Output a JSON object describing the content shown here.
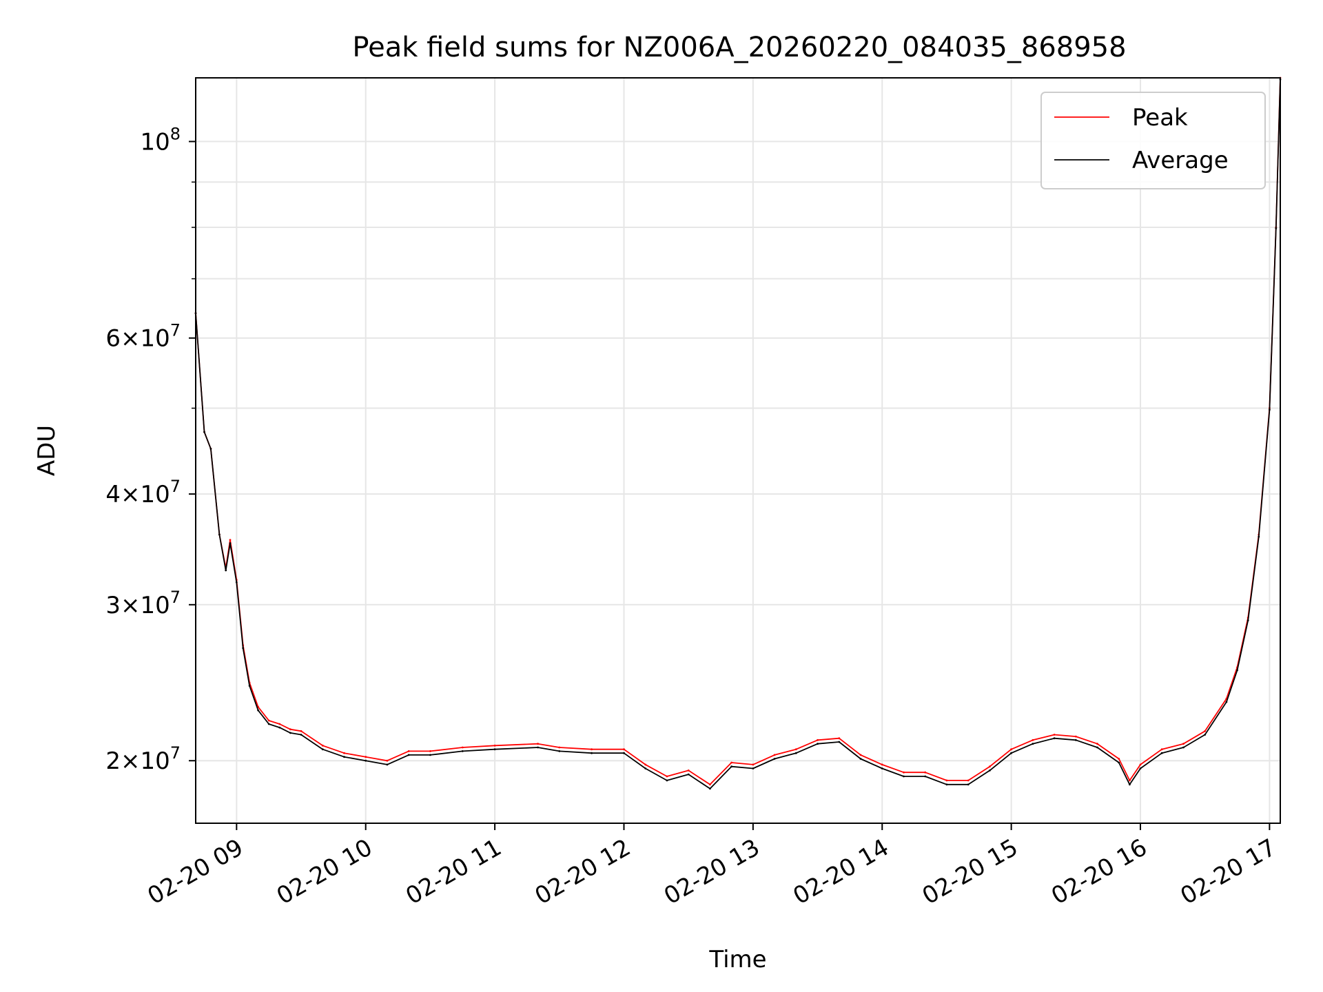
{
  "chart_data": {
    "type": "line",
    "title": "Peak field sums for NZ006A_20260220_084035_868958",
    "xlabel": "Time",
    "ylabel": "ADU",
    "y_scale": "log",
    "xlim": [
      "02-20 08:41",
      "02-20 17:05"
    ],
    "ylim": [
      17000000,
      118000000
    ],
    "grid": true,
    "legend_position": "top-right",
    "x_tick_labels": [
      "02-20 09",
      "02-20 10",
      "02-20 11",
      "02-20 12",
      "02-20 13",
      "02-20 14",
      "02-20 15",
      "02-20 16",
      "02-20 17"
    ],
    "y_tick_labels": [
      {
        "value": 20000000,
        "mantissa": "2",
        "exp": "7"
      },
      {
        "value": 30000000,
        "mantissa": "3",
        "exp": "7"
      },
      {
        "value": 40000000,
        "mantissa": "4",
        "exp": "7"
      },
      {
        "value": 60000000,
        "mantissa": "6",
        "exp": "7"
      },
      {
        "value": 100000000,
        "mantissa": "",
        "exp": "8"
      }
    ],
    "x": [
      "02-20 08:41",
      "02-20 08:45",
      "02-20 08:48",
      "02-20 08:52",
      "02-20 08:55",
      "02-20 08:57",
      "02-20 09:00",
      "02-20 09:03",
      "02-20 09:06",
      "02-20 09:10",
      "02-20 09:15",
      "02-20 09:20",
      "02-20 09:25",
      "02-20 09:30",
      "02-20 09:40",
      "02-20 09:50",
      "02-20 10:00",
      "02-20 10:10",
      "02-20 10:20",
      "02-20 10:30",
      "02-20 10:45",
      "02-20 11:00",
      "02-20 11:20",
      "02-20 11:30",
      "02-20 11:45",
      "02-20 12:00",
      "02-20 12:10",
      "02-20 12:20",
      "02-20 12:30",
      "02-20 12:40",
      "02-20 12:50",
      "02-20 13:00",
      "02-20 13:10",
      "02-20 13:20",
      "02-20 13:30",
      "02-20 13:40",
      "02-20 13:50",
      "02-20 14:00",
      "02-20 14:10",
      "02-20 14:20",
      "02-20 14:30",
      "02-20 14:40",
      "02-20 14:50",
      "02-20 15:00",
      "02-20 15:10",
      "02-20 15:20",
      "02-20 15:30",
      "02-20 15:40",
      "02-20 15:50",
      "02-20 15:55",
      "02-20 16:00",
      "02-20 16:10",
      "02-20 16:20",
      "02-20 16:30",
      "02-20 16:40",
      "02-20 16:45",
      "02-20 16:50",
      "02-20 16:55",
      "02-20 17:00",
      "02-20 17:03",
      "02-20 17:05"
    ],
    "series": [
      {
        "name": "Peak",
        "color": "#ff0000",
        "values": [
          64000000,
          47000000,
          45000000,
          36000000,
          33000000,
          35500000,
          32000000,
          27000000,
          24500000,
          23000000,
          22200000,
          22000000,
          21700000,
          21600000,
          20800000,
          20400000,
          20200000,
          20000000,
          20500000,
          20500000,
          20700000,
          20800000,
          20900000,
          20700000,
          20600000,
          20600000,
          19800000,
          19200000,
          19500000,
          18800000,
          19900000,
          19800000,
          20300000,
          20600000,
          21100000,
          21200000,
          20300000,
          19800000,
          19400000,
          19400000,
          19000000,
          19000000,
          19700000,
          20600000,
          21100000,
          21400000,
          21300000,
          20900000,
          20100000,
          19000000,
          19800000,
          20600000,
          20900000,
          21600000,
          23500000,
          25500000,
          29000000,
          36000000,
          50000000,
          80000000,
          118000000
        ]
      },
      {
        "name": "Average",
        "color": "#000000",
        "values": [
          64000000,
          47000000,
          45000000,
          36000000,
          32800000,
          35200000,
          31800000,
          26800000,
          24300000,
          22800000,
          22000000,
          21800000,
          21500000,
          21400000,
          20600000,
          20200000,
          20000000,
          19800000,
          20300000,
          20300000,
          20500000,
          20600000,
          20700000,
          20500000,
          20400000,
          20400000,
          19600000,
          19000000,
          19300000,
          18600000,
          19700000,
          19600000,
          20100000,
          20400000,
          20900000,
          21000000,
          20100000,
          19600000,
          19200000,
          19200000,
          18800000,
          18800000,
          19500000,
          20400000,
          20900000,
          21200000,
          21100000,
          20700000,
          19900000,
          18800000,
          19600000,
          20400000,
          20700000,
          21400000,
          23300000,
          25300000,
          28800000,
          35800000,
          49800000,
          79800000,
          117500000
        ]
      }
    ]
  }
}
